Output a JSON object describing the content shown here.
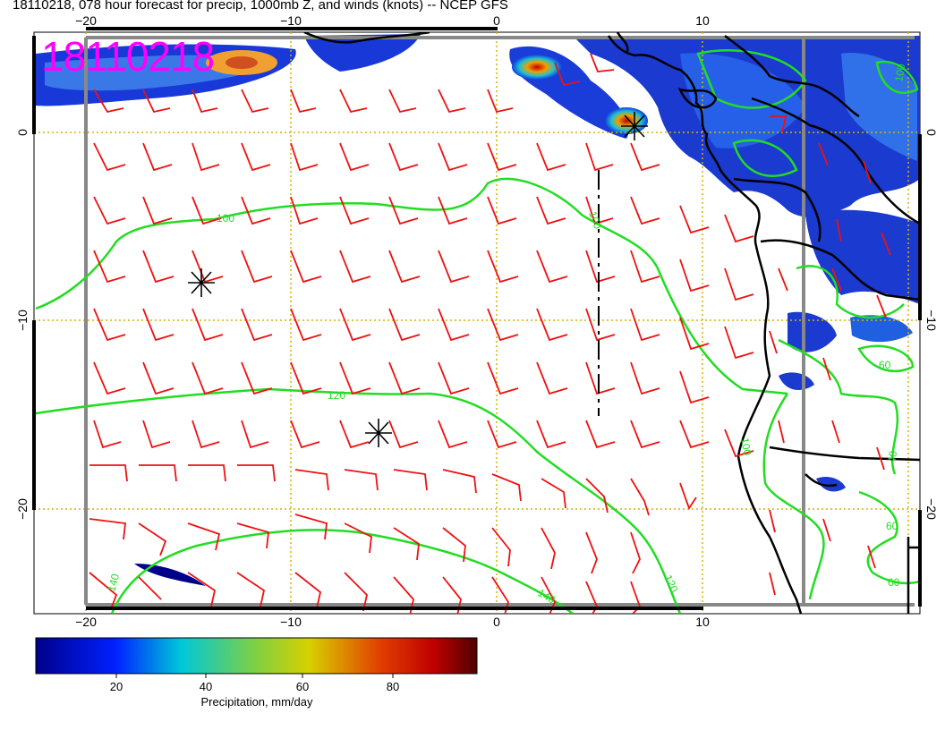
{
  "title": "18110218, 078 hour forecast for precip, 1000mb Z, and winds (knots) -- NCEP GFS",
  "stamp": "18110218",
  "axes": {
    "x_ticks": [
      "−20",
      "−10",
      "0",
      "10"
    ],
    "y_ticks": [
      "0",
      "−10",
      "−20"
    ]
  },
  "contour_labels": [
    "100",
    "120",
    "140",
    "100",
    "120",
    "140",
    "60",
    "60",
    "60",
    "40",
    "100",
    "100"
  ],
  "colorbar": {
    "ticks": [
      "20",
      "40",
      "60",
      "80"
    ],
    "label": "Precipitation, mm/day"
  },
  "colors": {
    "contour": "#22dd22",
    "barb": "#ee1111",
    "grid": "#d8b000",
    "stamp": "#ff00ff",
    "coast": "#000000"
  }
}
